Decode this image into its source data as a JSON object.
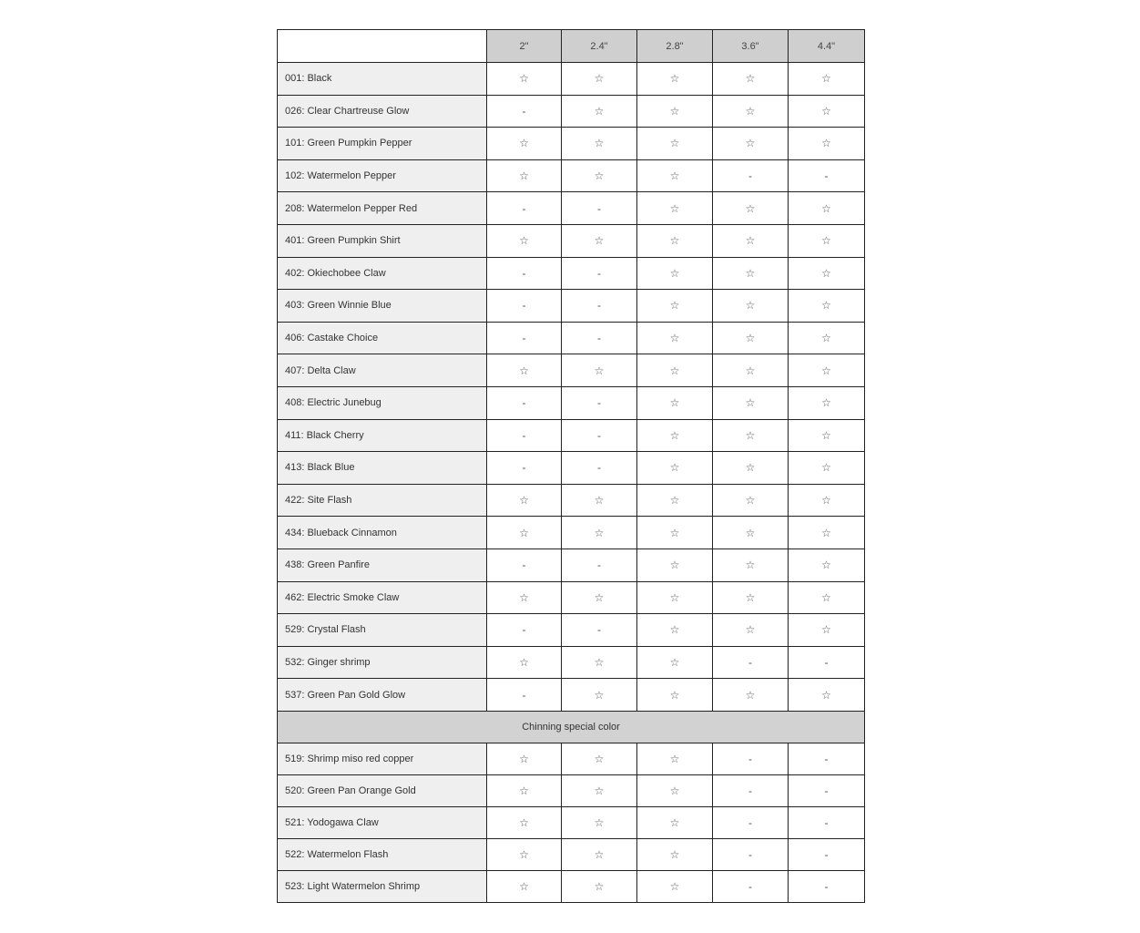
{
  "columns": [
    "2\"",
    "2.4\"",
    "2.8\"",
    "3.6\"",
    "4.4\""
  ],
  "icons": {
    "available": "star-outline-icon",
    "unavailable": "dash"
  },
  "rows": [
    {
      "name": "001: Black",
      "cells": [
        "☆",
        "☆",
        "☆",
        "☆",
        "☆"
      ]
    },
    {
      "name": "026: Clear Chartreuse Glow",
      "cells": [
        "-",
        "☆",
        "☆",
        "☆",
        "☆"
      ]
    },
    {
      "name": "101: Green Pumpkin Pepper",
      "cells": [
        "☆",
        "☆",
        "☆",
        "☆",
        "☆"
      ]
    },
    {
      "name": "102: Watermelon Pepper",
      "cells": [
        "☆",
        "☆",
        "☆",
        "-",
        "-"
      ]
    },
    {
      "name": "208: Watermelon Pepper Red",
      "cells": [
        "-",
        "-",
        "☆",
        "☆",
        "☆"
      ]
    },
    {
      "name": "401: Green Pumpkin Shirt",
      "cells": [
        "☆",
        "☆",
        "☆",
        "☆",
        "☆"
      ]
    },
    {
      "name": "402: Okiechobee Claw",
      "cells": [
        "-",
        "-",
        "☆",
        "☆",
        "☆"
      ]
    },
    {
      "name": "403: Green Winnie Blue",
      "cells": [
        "-",
        "-",
        "☆",
        "☆",
        "☆"
      ]
    },
    {
      "name": "406: Castake Choice",
      "cells": [
        "-",
        "-",
        "☆",
        "☆",
        "☆"
      ]
    },
    {
      "name": "407: Delta Claw",
      "cells": [
        "☆",
        "☆",
        "☆",
        "☆",
        "☆"
      ]
    },
    {
      "name": "408: Electric Junebug",
      "cells": [
        "-",
        "-",
        "☆",
        "☆",
        "☆"
      ]
    },
    {
      "name": "411: Black Cherry",
      "cells": [
        "-",
        "-",
        "☆",
        "☆",
        "☆"
      ]
    },
    {
      "name": "413: Black Blue",
      "cells": [
        "-",
        "-",
        "☆",
        "☆",
        "☆"
      ]
    },
    {
      "name": "422: Site Flash",
      "cells": [
        "☆",
        "☆",
        "☆",
        "☆",
        "☆"
      ]
    },
    {
      "name": "434: Blueback Cinnamon",
      "cells": [
        "☆",
        "☆",
        "☆",
        "☆",
        "☆"
      ]
    },
    {
      "name": "438: Green Panfire",
      "cells": [
        "-",
        "-",
        "☆",
        "☆",
        "☆"
      ]
    },
    {
      "name": "462: Electric Smoke Claw",
      "cells": [
        "☆",
        "☆",
        "☆",
        "☆",
        "☆"
      ]
    },
    {
      "name": "529: Crystal Flash",
      "cells": [
        "-",
        "-",
        "☆",
        "☆",
        "☆"
      ]
    },
    {
      "name": "532: Ginger shrimp",
      "cells": [
        "☆",
        "☆",
        "☆",
        "-",
        "-"
      ]
    },
    {
      "name": "537: Green Pan Gold Glow",
      "cells": [
        "-",
        "☆",
        "☆",
        "☆",
        "☆"
      ]
    }
  ],
  "section_title": "Chinning special color",
  "special_rows": [
    {
      "name": "519: Shrimp miso red copper",
      "cells": [
        "☆",
        "☆",
        "☆",
        "-",
        "-"
      ]
    },
    {
      "name": "520: Green Pan Orange Gold",
      "cells": [
        "☆",
        "☆",
        "☆",
        "-",
        "-"
      ]
    },
    {
      "name": "521: Yodogawa Claw",
      "cells": [
        "☆",
        "☆",
        "☆",
        "-",
        "-"
      ]
    },
    {
      "name": "522: Watermelon Flash",
      "cells": [
        "☆",
        "☆",
        "☆",
        "-",
        "-"
      ]
    },
    {
      "name": "523: Light Watermelon Shrimp",
      "cells": [
        "☆",
        "☆",
        "☆",
        "-",
        "-"
      ]
    }
  ]
}
